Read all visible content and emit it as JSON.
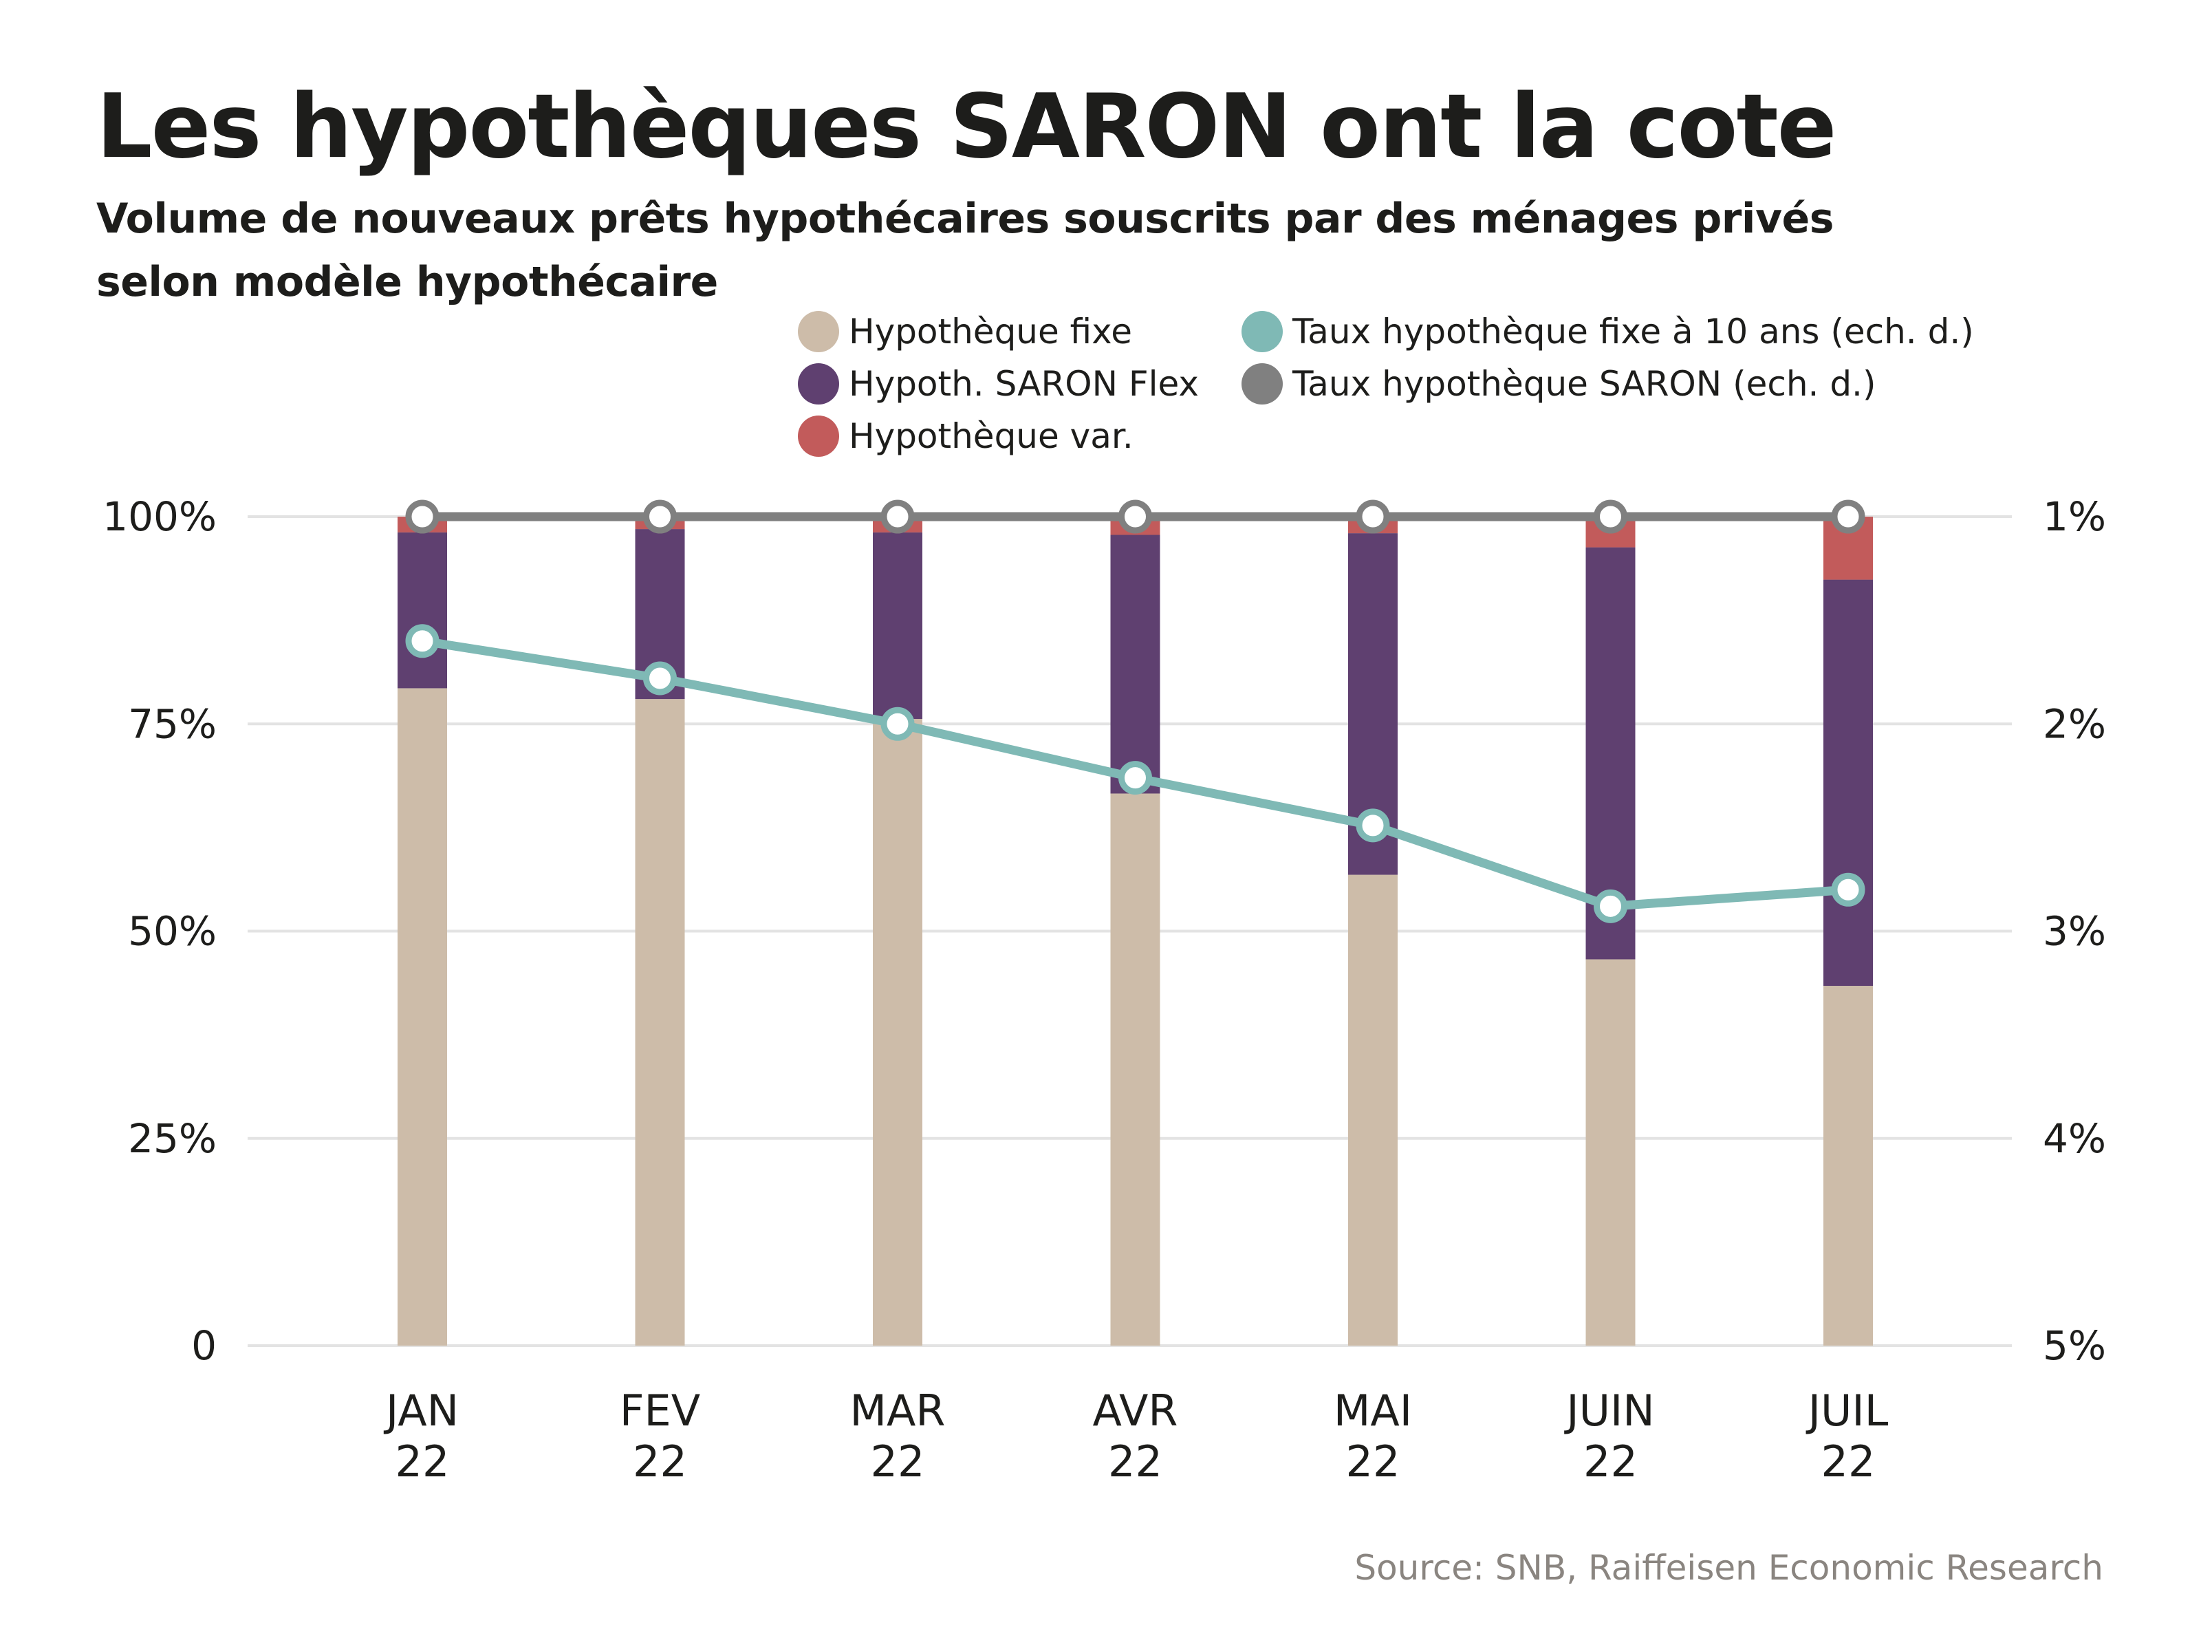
{
  "header": {
    "title": "Les hypothèques SARON ont la cote",
    "subtitle": "Volume de nouveaux prêts hypothécaires souscrits par des ménages privés selon modèle hypothécaire"
  },
  "legend": [
    {
      "label": "Hypothèque fixe",
      "color": "#cdbca9",
      "icon": "circle-swatch"
    },
    {
      "label": "Hypoth. SARON Flex",
      "color": "#5f4070",
      "icon": "circle-swatch"
    },
    {
      "label": "Hypothèque var.",
      "color": "#c25b5b",
      "icon": "circle-swatch"
    },
    {
      "label": "Taux hypothèque fixe à 10 ans (ech. d.)",
      "color": "#7fb9b5",
      "icon": "circle-swatch"
    },
    {
      "label": "Taux hypothèque SARON (ech. d.)",
      "color": "#808080",
      "icon": "circle-swatch"
    }
  ],
  "source": "Source: SNB, Raiffeisen Economic Research",
  "chart_data": {
    "type": "bar",
    "stacked": true,
    "title": "Les hypothèques SARON ont la cote",
    "subtitle": "Volume de nouveaux prêts hypothécaires souscrits par des ménages privés selon modèle hypothécaire",
    "categories": [
      [
        "JAN",
        "22"
      ],
      [
        "FEV",
        "22"
      ],
      [
        "MAR",
        "22"
      ],
      [
        "AVR",
        "22"
      ],
      [
        "MAI",
        "22"
      ],
      [
        "JUIN",
        "22"
      ],
      [
        "JUIL",
        "22"
      ]
    ],
    "series": [
      {
        "name": "Hypothèque fixe",
        "type": "bar",
        "axis": "left",
        "color": "#cdbca9",
        "values": [
          79.3,
          78.0,
          75.6,
          66.6,
          56.8,
          46.6,
          43.4
        ]
      },
      {
        "name": "Hypoth. SARON Flex",
        "type": "bar",
        "axis": "left",
        "color": "#5f4070",
        "values": [
          18.8,
          20.5,
          22.5,
          31.2,
          41.2,
          49.7,
          49.0
        ]
      },
      {
        "name": "Hypothèque var.",
        "type": "bar",
        "axis": "left",
        "color": "#c25b5b",
        "values": [
          1.9,
          1.5,
          1.9,
          2.2,
          2.0,
          3.7,
          7.6
        ]
      },
      {
        "name": "Taux hypothèque fixe à 10 ans (ech. d.)",
        "type": "line",
        "axis": "right",
        "color": "#7fb9b5",
        "values": [
          1.6,
          1.78,
          2.0,
          2.26,
          2.49,
          2.88,
          2.8
        ]
      },
      {
        "name": "Taux hypothèque SARON (ech. d.)",
        "type": "line",
        "axis": "right",
        "color": "#808080",
        "values": [
          1.0,
          1.0,
          1.0,
          1.0,
          1.0,
          1.0,
          1.0
        ]
      }
    ],
    "y_left": {
      "ticks": [
        0,
        25,
        50,
        75,
        100
      ],
      "tick_labels": [
        "0",
        "25%",
        "50%",
        "75%",
        "100%"
      ],
      "range": [
        0,
        100
      ]
    },
    "y_right": {
      "ticks": [
        1,
        2,
        3,
        4,
        5
      ],
      "tick_labels": [
        "1%",
        "2%",
        "3%",
        "4%",
        "5%"
      ],
      "range": [
        1,
        5
      ],
      "inverted": true
    },
    "xlabel": "",
    "ylabel": "",
    "grid": true,
    "legend_position": "top-right"
  }
}
